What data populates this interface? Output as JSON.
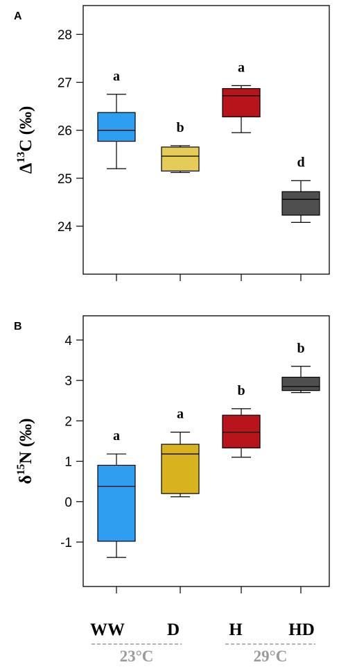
{
  "chart_data": [
    {
      "type": "box",
      "panel_label": "A",
      "ylabel_prefix": "Δ",
      "ylabel_sup": "13",
      "ylabel_suffix": "C (‰)",
      "ylim": [
        23.0,
        28.6
      ],
      "yticks": [
        24,
        25,
        26,
        27,
        28
      ],
      "categories": [
        "WW",
        "D",
        "H",
        "HD"
      ],
      "colors": [
        "#2e9ff0",
        "#e5cb57",
        "#b8141c",
        "#4f4f4f"
      ],
      "boxes": [
        {
          "min": 25.2,
          "q1": 25.77,
          "median": 26.0,
          "q3": 26.37,
          "max": 26.75,
          "label": "a"
        },
        {
          "min": 25.12,
          "q1": 25.15,
          "median": 25.46,
          "q3": 25.65,
          "max": 25.68,
          "label": "b"
        },
        {
          "min": 25.95,
          "q1": 26.28,
          "median": 26.72,
          "q3": 26.87,
          "max": 26.93,
          "label": "a"
        },
        {
          "min": 24.08,
          "q1": 24.23,
          "median": 24.56,
          "q3": 24.72,
          "max": 24.95,
          "label": "d"
        }
      ]
    },
    {
      "type": "box",
      "panel_label": "B",
      "ylabel_prefix": "δ",
      "ylabel_sup": "15",
      "ylabel_suffix": "N (‰)",
      "ylim": [
        -2.1,
        4.6
      ],
      "yticks": [
        -1,
        0,
        1,
        2,
        3,
        4
      ],
      "categories": [
        "WW",
        "D",
        "H",
        "HD"
      ],
      "colors": [
        "#2e9ff0",
        "#d9b21f",
        "#b8141c",
        "#4f4f4f"
      ],
      "boxes": [
        {
          "min": -1.38,
          "q1": -0.98,
          "median": 0.38,
          "q3": 0.9,
          "max": 1.18,
          "label": "a"
        },
        {
          "min": 0.12,
          "q1": 0.2,
          "median": 1.18,
          "q3": 1.42,
          "max": 1.72,
          "label": "a"
        },
        {
          "min": 1.1,
          "q1": 1.33,
          "median": 1.72,
          "q3": 2.14,
          "max": 2.3,
          "label": "b"
        },
        {
          "min": 2.7,
          "q1": 2.75,
          "median": 2.85,
          "q3": 3.08,
          "max": 3.35,
          "label": "b"
        }
      ]
    }
  ],
  "groups": [
    {
      "name": "23°C",
      "categories": [
        "WW",
        "D"
      ],
      "color": "#9a9a9a"
    },
    {
      "name": "29°C",
      "categories": [
        "H",
        "HD"
      ],
      "color": "#9a9a9a"
    }
  ]
}
